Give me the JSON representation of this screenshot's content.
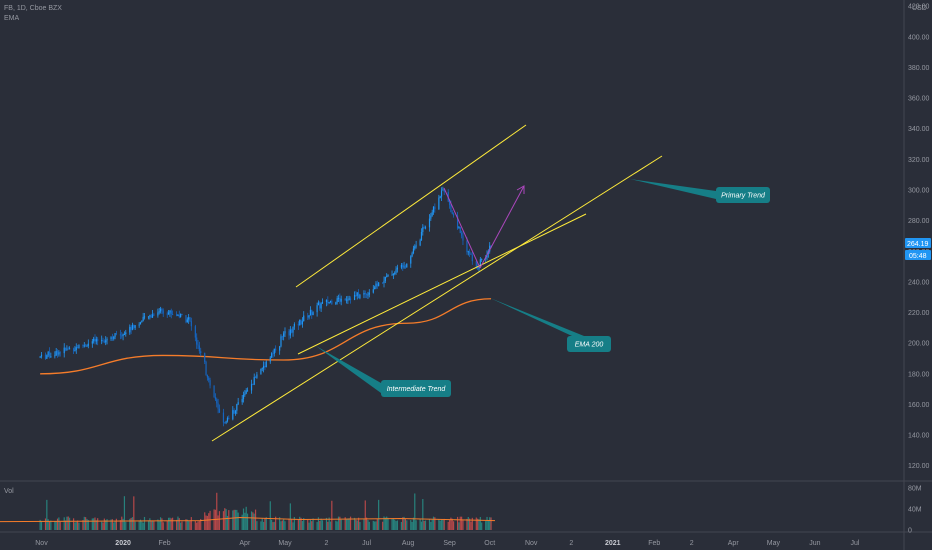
{
  "header": {
    "symbol_line": "FB, 1D, Cboe BZX",
    "indicator": "EMA",
    "volume_label": "Vol",
    "currency": "USD"
  },
  "price_tags": {
    "last_price": "264.19",
    "countdown": "05:48",
    "tag_color": "#2196f3"
  },
  "chart_data": {
    "type": "candlestick",
    "price_axis": {
      "ticks": [
        "120.00",
        "140.00",
        "160.00",
        "180.00",
        "200.00",
        "220.00",
        "240.00",
        "260.00",
        "280.00",
        "300.00",
        "320.00",
        "340.00",
        "360.00",
        "380.00",
        "400.00",
        "420.00"
      ],
      "range": [
        112,
        424
      ]
    },
    "volume_axis": {
      "ticks": [
        "80M",
        "40M",
        "0"
      ],
      "range": [
        0,
        90
      ]
    },
    "time_axis": {
      "ticks": [
        "Nov",
        "2020",
        "Feb",
        "Apr",
        "May",
        "2",
        "Jul",
        "Aug",
        "Sep",
        "Oct",
        "Nov",
        "2",
        "2021",
        "Feb",
        "2",
        "Apr",
        "May",
        "Jun",
        "Jul"
      ]
    },
    "price_series_approx": [
      [
        "2019-10-31",
        191
      ],
      [
        "2019-11-30",
        198
      ],
      [
        "2019-12-31",
        206
      ],
      [
        "2020-01-29",
        222
      ],
      [
        "2020-02-19",
        216
      ],
      [
        "2020-03-16",
        146
      ],
      [
        "2020-04-30",
        205
      ],
      [
        "2020-05-29",
        226
      ],
      [
        "2020-06-30",
        232
      ],
      [
        "2020-07-31",
        253
      ],
      [
        "2020-08-27",
        300
      ],
      [
        "2020-09-21",
        248
      ],
      [
        "2020-10-02",
        264
      ]
    ],
    "ema_200_approx": [
      [
        "2019-10-31",
        180
      ],
      [
        "2020-01-31",
        192
      ],
      [
        "2020-04-30",
        189
      ],
      [
        "2020-07-31",
        213
      ],
      [
        "2020-10-02",
        229
      ]
    ],
    "candle_up_color": "#2196f3",
    "candle_down_color": "#1565c0",
    "ema_color": "#f57c2a",
    "vol_up_color": "#26a69a",
    "vol_down_color": "#ef5350",
    "trendline_color": "#ffeb3b",
    "arrow_down_color": "#ab47bc",
    "arrow_up_color": "#ab47bc",
    "annotations": [
      {
        "label": "Primary Trend"
      },
      {
        "label": "EMA 200"
      },
      {
        "label": "Intermediate Trend"
      }
    ],
    "annotation_color": "#167e87",
    "grid": false
  }
}
